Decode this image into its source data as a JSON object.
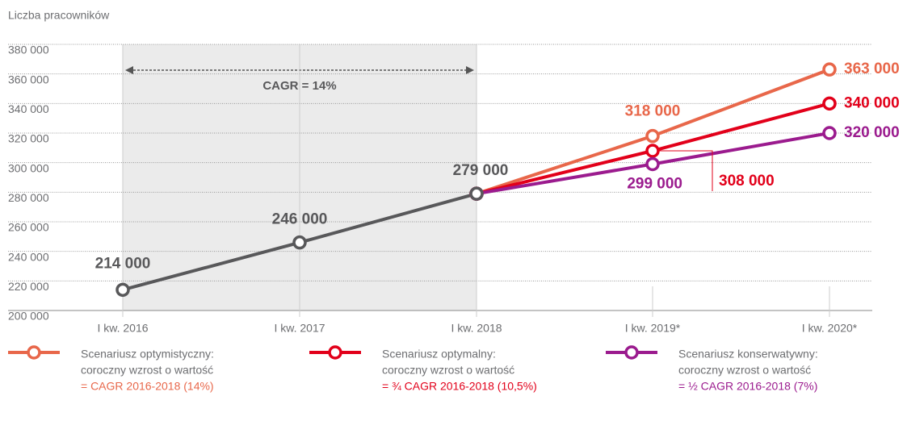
{
  "chart_data": {
    "type": "line",
    "y_label": "Liczba pracowników",
    "categories": [
      "I kw. 2016",
      "I kw. 2017",
      "I kw. 2018",
      "I kw. 2019*",
      "I kw. 2020*"
    ],
    "ylim": [
      200000,
      380000
    ],
    "yticks": [
      {
        "value": 200000,
        "label": "200 000"
      },
      {
        "value": 220000,
        "label": "220 000"
      },
      {
        "value": 240000,
        "label": "240 000"
      },
      {
        "value": 260000,
        "label": "260 000"
      },
      {
        "value": 280000,
        "label": "280 000"
      },
      {
        "value": 300000,
        "label": "300 000"
      },
      {
        "value": 320000,
        "label": "320 000"
      },
      {
        "value": 340000,
        "label": "340 000"
      },
      {
        "value": 360000,
        "label": "360 000"
      },
      {
        "value": 380000,
        "label": "380 000"
      }
    ],
    "grid": true,
    "annotation": "CAGR = 14%",
    "series": [
      {
        "color": "#e8674a",
        "name": "Scenariusz optymistyczny:",
        "description": [
          "coroczny wzrost o wartość",
          "= CAGR 2016-2018 (14%)"
        ],
        "values": [
          null,
          null,
          279000,
          318000,
          363000
        ],
        "value_labels": [
          null,
          null,
          null,
          "318 000",
          "363 000"
        ]
      },
      {
        "color": "#e2001a",
        "name": "Scenariusz optymalny:",
        "description": [
          "coroczny wzrost o wartość",
          "= ¾ CAGR 2016-2018 (10,5%)"
        ],
        "values": [
          null,
          null,
          279000,
          308000,
          340000
        ],
        "value_labels": [
          null,
          null,
          null,
          "308 000",
          "340 000"
        ]
      },
      {
        "color": "#9b1b8e",
        "name": "Scenariusz konserwatywny:",
        "description": [
          "coroczny wzrost o wartość",
          "= ½ CAGR 2016-2018 (7%)"
        ],
        "values": [
          null,
          null,
          279000,
          299000,
          320000
        ],
        "value_labels": [
          null,
          null,
          null,
          "299 000",
          "320 000"
        ]
      },
      {
        "color": "#58585a",
        "values": [
          214000,
          246000,
          279000,
          null,
          null
        ],
        "value_labels": [
          "214 000",
          "246 000",
          "279 000",
          null,
          null
        ]
      }
    ]
  }
}
